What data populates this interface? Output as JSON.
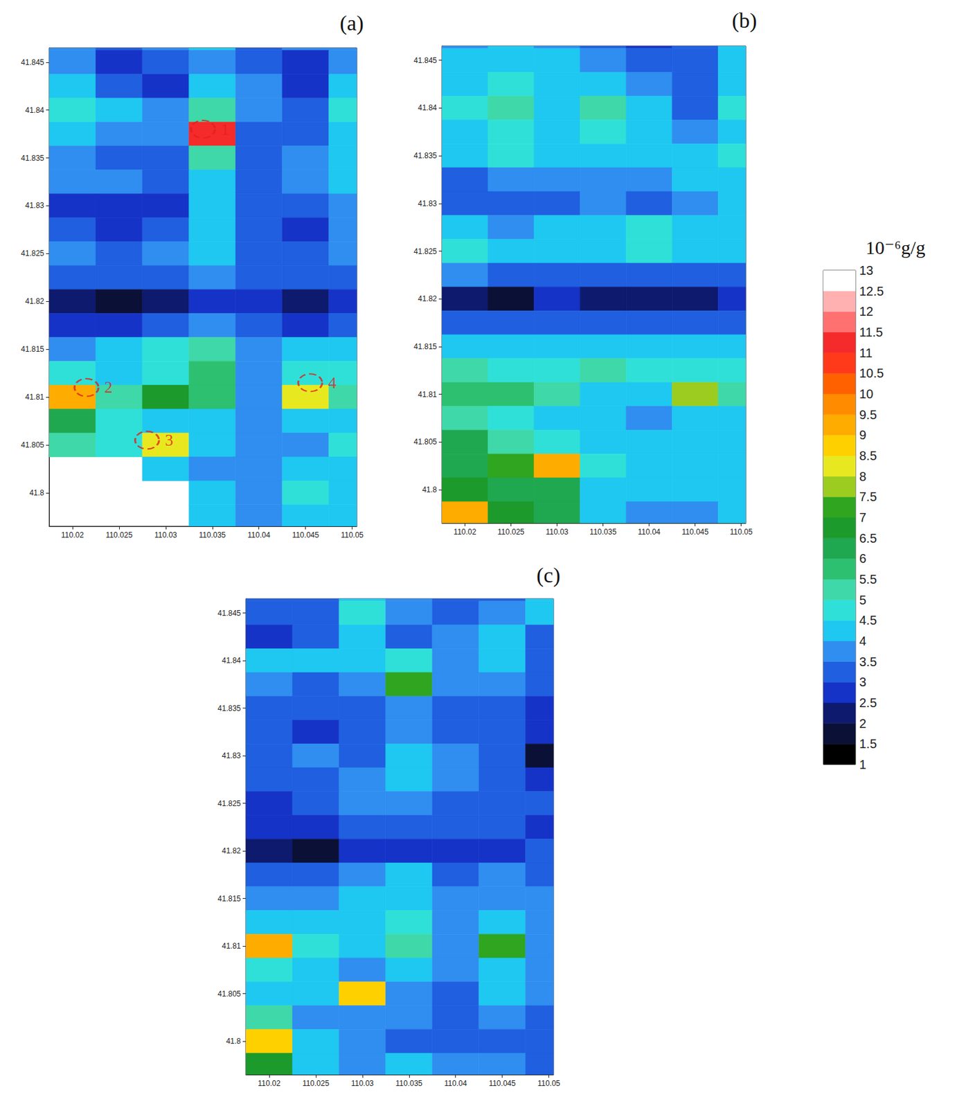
{
  "chart_data": [
    {
      "type": "heatmap",
      "title": "(a)",
      "xlim": [
        110.0175,
        110.0505
      ],
      "ylim": [
        41.7965,
        41.8465
      ],
      "xticks": [
        110.02,
        110.025,
        110.03,
        110.035,
        110.04,
        110.045,
        110.05
      ],
      "yticks": [
        41.8,
        41.805,
        41.81,
        41.815,
        41.82,
        41.825,
        41.83,
        41.835,
        41.84,
        41.845
      ],
      "x": [
        110.02,
        110.025,
        110.03,
        110.035,
        110.04,
        110.045,
        110.05
      ],
      "y": [
        41.8475,
        41.845,
        41.8425,
        41.84,
        41.8375,
        41.835,
        41.8325,
        41.83,
        41.8275,
        41.825,
        41.8225,
        41.82,
        41.8175,
        41.815,
        41.8125,
        41.81,
        41.8075,
        41.805,
        41.8025,
        41.8,
        41.7975
      ],
      "cells": [
        [
          3.5,
          3,
          3.5,
          4,
          3,
          3.5,
          3.5
        ],
        [
          3.5,
          2.5,
          3,
          3.5,
          3,
          2.5,
          3.5
        ],
        [
          4,
          3,
          2.5,
          4,
          3.5,
          2.5,
          4
        ],
        [
          4.5,
          4,
          3.5,
          5,
          3.5,
          3,
          4.5
        ],
        [
          4,
          3.5,
          3.5,
          11,
          3,
          3,
          4
        ],
        [
          3.5,
          3,
          3,
          5,
          3,
          3.5,
          4
        ],
        [
          3.5,
          3.5,
          3,
          4,
          3,
          3.5,
          4
        ],
        [
          2.5,
          2.5,
          2.5,
          4,
          3,
          3,
          3.5
        ],
        [
          3,
          2.5,
          3,
          4,
          3,
          2.5,
          3.5
        ],
        [
          3.5,
          3,
          3.5,
          4,
          3,
          3,
          3.5
        ],
        [
          3,
          3,
          3,
          3.5,
          3,
          3,
          3
        ],
        [
          2,
          1.5,
          2,
          2.5,
          2.5,
          2,
          2.5
        ],
        [
          2.5,
          2.5,
          3,
          3.5,
          3,
          2.5,
          3
        ],
        [
          3.5,
          4,
          4.5,
          5,
          3.5,
          4,
          4
        ],
        [
          4.5,
          4,
          4.5,
          5.5,
          3.5,
          4.5,
          4.5
        ],
        [
          9,
          5,
          6.5,
          5.5,
          3.5,
          8,
          5
        ],
        [
          6,
          4.5,
          4,
          4,
          3.5,
          4,
          4
        ],
        [
          5,
          4.5,
          8,
          4,
          3.5,
          3.5,
          4.5
        ],
        [
          null,
          null,
          4,
          3.5,
          3.5,
          4,
          4
        ],
        [
          null,
          null,
          null,
          4,
          3.5,
          4.5,
          4
        ],
        [
          null,
          null,
          null,
          4,
          3.5,
          4,
          4
        ]
      ],
      "annotations": [
        {
          "text": "1",
          "x": 110.034,
          "y": 41.838
        },
        {
          "text": "2",
          "x": 110.0215,
          "y": 41.811
        },
        {
          "text": "3",
          "x": 110.028,
          "y": 41.8055
        },
        {
          "text": "4",
          "x": 110.0455,
          "y": 41.8115
        }
      ]
    },
    {
      "type": "heatmap",
      "title": "(b)",
      "xlim": [
        110.0175,
        110.0505
      ],
      "ylim": [
        41.7965,
        41.8465
      ],
      "xticks": [
        110.02,
        110.025,
        110.03,
        110.035,
        110.04,
        110.045,
        110.05
      ],
      "yticks": [
        41.8,
        41.805,
        41.81,
        41.815,
        41.82,
        41.825,
        41.83,
        41.835,
        41.84,
        41.845
      ],
      "x": [
        110.02,
        110.025,
        110.03,
        110.035,
        110.04,
        110.045,
        110.05
      ],
      "y": [
        41.8475,
        41.845,
        41.8425,
        41.84,
        41.8375,
        41.835,
        41.8325,
        41.83,
        41.8275,
        41.825,
        41.8225,
        41.82,
        41.8175,
        41.815,
        41.8125,
        41.81,
        41.8075,
        41.805,
        41.8025,
        41.8,
        41.7975
      ],
      "cells": [
        [
          3.5,
          4,
          3.5,
          3,
          2.5,
          3,
          4
        ],
        [
          4,
          4,
          4,
          3.5,
          3,
          3,
          4
        ],
        [
          4,
          4.5,
          4,
          4,
          3.5,
          3,
          4
        ],
        [
          4.5,
          5,
          4,
          5,
          4,
          3,
          4.5
        ],
        [
          4,
          4.5,
          4,
          4.5,
          4,
          3.5,
          4
        ],
        [
          4,
          4.5,
          4,
          4,
          4,
          4,
          4.5
        ],
        [
          3,
          3.5,
          3.5,
          3.5,
          3.5,
          4,
          4
        ],
        [
          3,
          3,
          3,
          3.5,
          3,
          3.5,
          4
        ],
        [
          4,
          3.5,
          4,
          4,
          4.5,
          4,
          4
        ],
        [
          4.5,
          4,
          4,
          4,
          4.5,
          4,
          4
        ],
        [
          3.5,
          3,
          3,
          3,
          3,
          3,
          3
        ],
        [
          2,
          1.5,
          2.5,
          2,
          2,
          2,
          2.5
        ],
        [
          3,
          3,
          3,
          3,
          3,
          3,
          3
        ],
        [
          4,
          4,
          4,
          4,
          4,
          4,
          4
        ],
        [
          5,
          4.5,
          4.5,
          5,
          4.5,
          4.5,
          4.5
        ],
        [
          5.5,
          5.5,
          5,
          4,
          4,
          7.5,
          5
        ],
        [
          5,
          4.5,
          4,
          4,
          3.5,
          4,
          4
        ],
        [
          6,
          5,
          4.5,
          4,
          4,
          4,
          4
        ],
        [
          6,
          7,
          9,
          4.5,
          4,
          4,
          4
        ],
        [
          6.5,
          6,
          6,
          4,
          4,
          4,
          4
        ],
        [
          9,
          6.5,
          6,
          4,
          3.5,
          3.5,
          4
        ]
      ]
    },
    {
      "type": "heatmap",
      "title": "(c)",
      "xlim": [
        110.0175,
        110.0505
      ],
      "ylim": [
        41.7965,
        41.8465
      ],
      "xticks": [
        110.02,
        110.025,
        110.03,
        110.035,
        110.04,
        110.045,
        110.05
      ],
      "yticks": [
        41.8,
        41.805,
        41.81,
        41.815,
        41.82,
        41.825,
        41.83,
        41.835,
        41.84,
        41.845
      ],
      "x": [
        110.02,
        110.025,
        110.03,
        110.035,
        110.04,
        110.045,
        110.05
      ],
      "y": [
        41.8475,
        41.845,
        41.8425,
        41.84,
        41.8375,
        41.835,
        41.8325,
        41.83,
        41.8275,
        41.825,
        41.8225,
        41.82,
        41.8175,
        41.815,
        41.8125,
        41.81,
        41.8075,
        41.805,
        41.8025,
        41.8,
        41.7975
      ],
      "cells": [
        [
          3,
          3,
          4,
          3.5,
          3,
          3,
          4
        ],
        [
          3,
          3,
          4.5,
          3.5,
          3,
          3.5,
          4
        ],
        [
          2.5,
          3,
          4,
          3,
          3.5,
          4,
          3
        ],
        [
          4,
          4,
          4,
          4.5,
          3.5,
          4,
          3
        ],
        [
          3.5,
          3,
          3.5,
          7,
          3.5,
          3.5,
          3
        ],
        [
          3,
          3,
          3,
          3.5,
          3,
          3,
          2.5
        ],
        [
          3,
          2.5,
          3,
          3.5,
          3,
          3,
          2.5
        ],
        [
          3,
          3.5,
          3,
          4,
          3.5,
          3,
          1.5
        ],
        [
          3,
          3,
          3.5,
          4,
          3.5,
          3,
          2.5
        ],
        [
          2.5,
          3,
          3.5,
          3.5,
          3,
          3,
          3
        ],
        [
          2.5,
          2.5,
          3,
          3,
          3,
          3,
          2.5
        ],
        [
          2,
          1.5,
          2.5,
          2.5,
          2.5,
          2.5,
          3
        ],
        [
          3,
          3,
          3.5,
          4,
          3,
          3.5,
          3
        ],
        [
          3.5,
          3.5,
          4,
          4,
          3.5,
          3.5,
          3.5
        ],
        [
          4,
          4,
          4,
          4.5,
          3.5,
          4,
          3.5
        ],
        [
          9,
          4.5,
          4,
          5,
          3.5,
          7,
          3.5
        ],
        [
          4.5,
          4,
          3.5,
          4,
          3.5,
          4,
          3.5
        ],
        [
          4,
          4,
          8.5,
          3.5,
          3,
          4,
          3.5
        ],
        [
          5,
          3.5,
          3.5,
          3.5,
          3,
          3.5,
          3
        ],
        [
          8.5,
          4,
          3.5,
          3,
          3,
          3,
          3
        ],
        [
          6.5,
          4,
          3.5,
          4,
          3.5,
          3.5,
          3
        ]
      ]
    }
  ],
  "colorbar": {
    "title": "10⁻⁶g/g",
    "range": [
      1,
      13
    ],
    "ticks": [
      1,
      1.5,
      2,
      2.5,
      3,
      3.5,
      4,
      4.5,
      5,
      5.5,
      6,
      6.5,
      7,
      7.5,
      8,
      8.5,
      9,
      9.5,
      10,
      10.5,
      11,
      11.5,
      12,
      12.5,
      13
    ],
    "colors": [
      "#000000",
      "#0b1036",
      "#0d1a6e",
      "#1633c8",
      "#1f5fe0",
      "#2f8ef0",
      "#1ec8f0",
      "#2fe0d8",
      "#3fd8a8",
      "#2cc070",
      "#20a850",
      "#1c9a2c",
      "#2fa520",
      "#9ccc20",
      "#e8e820",
      "#ffd000",
      "#ffac00",
      "#ff8c00",
      "#ff6000",
      "#ff3a1a",
      "#f52a2a",
      "#ff7070",
      "#ffb0b0",
      "#ffffff"
    ]
  }
}
